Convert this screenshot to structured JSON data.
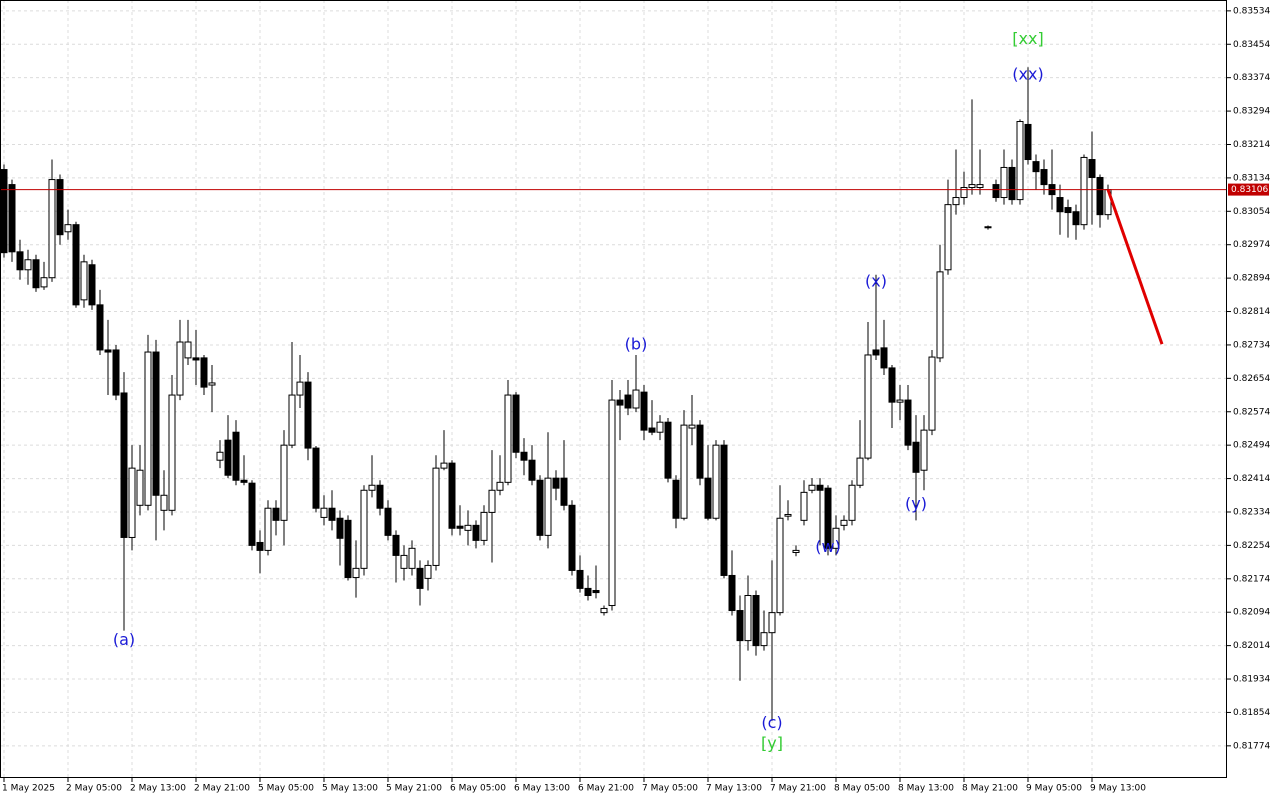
{
  "chart_data": {
    "type": "candlestick",
    "bull_color": "#ffffff",
    "bear_color": "#000000",
    "edge_color": "#000000",
    "grid": true,
    "categories": [
      "1 May 2025",
      null,
      null,
      null,
      null,
      null,
      null,
      null,
      "2 May 05:00",
      null,
      null,
      null,
      null,
      null,
      null,
      null,
      "2 May 13:00",
      null,
      null,
      null,
      null,
      null,
      null,
      null,
      "2 May 21:00",
      null,
      null,
      null,
      null,
      null,
      null,
      null,
      "5 May 05:00",
      null,
      null,
      null,
      null,
      null,
      null,
      null,
      "5 May 13:00",
      null,
      null,
      null,
      null,
      null,
      null,
      null,
      "5 May 21:00",
      null,
      null,
      null,
      null,
      null,
      null,
      null,
      "6 May 05:00",
      null,
      null,
      null,
      null,
      null,
      null,
      null,
      "6 May 13:00",
      null,
      null,
      null,
      null,
      null,
      null,
      null,
      "6 May 21:00",
      null,
      null,
      null,
      null,
      null,
      null,
      null,
      "7 May 05:00",
      null,
      null,
      null,
      null,
      null,
      null,
      null,
      "7 May 13:00",
      null,
      null,
      null,
      null,
      null,
      null,
      null,
      "7 May 21:00",
      null,
      null,
      null,
      null,
      null,
      null,
      null,
      "8 May 05:00",
      null,
      null,
      null,
      null,
      null,
      null,
      null,
      "8 May 13:00",
      null,
      null,
      null,
      null,
      null,
      null,
      null,
      "8 May 21:00",
      null,
      null,
      null,
      null,
      null,
      null,
      null,
      "9 May 05:00",
      null,
      null,
      null,
      null,
      null,
      null,
      null,
      "9 May 13:00",
      null,
      null
    ],
    "candles": [
      [
        0.83154,
        0.83166,
        0.82943,
        0.82955
      ],
      [
        0.83118,
        0.8313,
        0.82933,
        0.82957
      ],
      [
        0.82957,
        0.82986,
        0.8289,
        0.82914
      ],
      [
        0.82914,
        0.82962,
        0.82878,
        0.82938
      ],
      [
        0.82938,
        0.8295,
        0.82861,
        0.82871
      ],
      [
        0.82873,
        0.82933,
        0.82866,
        0.82895
      ],
      [
        0.82895,
        0.83178,
        0.82885,
        0.8313
      ],
      [
        0.8313,
        0.83142,
        0.82974,
        0.82998
      ],
      [
        0.83005,
        0.83058,
        0.82986,
        0.83022
      ],
      [
        0.83022,
        0.83029,
        0.82823,
        0.8283
      ],
      [
        0.82842,
        0.8295,
        0.82823,
        0.82933
      ],
      [
        0.82926,
        0.82938,
        0.82818,
        0.8283
      ],
      [
        0.8283,
        0.82866,
        0.8271,
        0.82722
      ],
      [
        0.82722,
        0.82794,
        0.82614,
        0.82717
      ],
      [
        0.82722,
        0.82734,
        0.82602,
        0.82614
      ],
      [
        0.82619,
        0.82669,
        0.8205,
        0.82273
      ],
      [
        0.82273,
        0.82494,
        0.82242,
        0.82439
      ],
      [
        0.8235,
        0.82494,
        0.82326,
        0.82434
      ],
      [
        0.8235,
        0.82758,
        0.82338,
        0.82717
      ],
      [
        0.82717,
        0.82746,
        0.82266,
        0.82374
      ],
      [
        0.82338,
        0.82434,
        0.8229,
        0.82374
      ],
      [
        0.82338,
        0.82662,
        0.82326,
        0.82614
      ],
      [
        0.82614,
        0.82794,
        0.82602,
        0.82741
      ],
      [
        0.82703,
        0.82794,
        0.82686,
        0.82741
      ],
      [
        0.82703,
        0.8277,
        0.82638,
        0.82698
      ],
      [
        0.82703,
        0.8271,
        0.82614,
        0.82633
      ],
      [
        0.82638,
        0.82686,
        0.82573,
        0.82643
      ],
      [
        0.82458,
        0.82506,
        0.82439,
        0.82477
      ],
      [
        0.82506,
        0.82566,
        0.82415,
        0.82422
      ],
      [
        0.82525,
        0.82554,
        0.82398,
        0.8241
      ],
      [
        0.8241,
        0.8247,
        0.82398,
        0.82405
      ],
      [
        0.82403,
        0.8241,
        0.82242,
        0.82254
      ],
      [
        0.82261,
        0.8229,
        0.82187,
        0.82242
      ],
      [
        0.82242,
        0.82362,
        0.8223,
        0.82343
      ],
      [
        0.82343,
        0.82362,
        0.82278,
        0.82314
      ],
      [
        0.82314,
        0.8253,
        0.82254,
        0.82494
      ],
      [
        0.82494,
        0.82741,
        0.82487,
        0.82614
      ],
      [
        0.82614,
        0.8271,
        0.82583,
        0.82645
      ],
      [
        0.82645,
        0.82669,
        0.82458,
        0.82487
      ],
      [
        0.82487,
        0.82492,
        0.82333,
        0.82343
      ],
      [
        0.82321,
        0.82374,
        0.82302,
        0.82343
      ],
      [
        0.82343,
        0.82386,
        0.8229,
        0.82314
      ],
      [
        0.82319,
        0.82338,
        0.82206,
        0.82271
      ],
      [
        0.82314,
        0.82326,
        0.8217,
        0.82177
      ],
      [
        0.82177,
        0.82266,
        0.82129,
        0.82199
      ],
      [
        0.82199,
        0.82398,
        0.82182,
        0.82386
      ],
      [
        0.82386,
        0.8247,
        0.82369,
        0.82398
      ],
      [
        0.82398,
        0.8241,
        0.82326,
        0.82343
      ],
      [
        0.82343,
        0.82362,
        0.82266,
        0.82278
      ],
      [
        0.82278,
        0.8229,
        0.82165,
        0.8223
      ],
      [
        0.82199,
        0.82254,
        0.8217,
        0.8223
      ],
      [
        0.82199,
        0.82266,
        0.82182,
        0.82247
      ],
      [
        0.82199,
        0.82218,
        0.8211,
        0.82151
      ],
      [
        0.82175,
        0.82218,
        0.82146,
        0.82206
      ],
      [
        0.82206,
        0.8247,
        0.82194,
        0.82439
      ],
      [
        0.82439,
        0.8253,
        0.82434,
        0.82451
      ],
      [
        0.82451,
        0.82458,
        0.82278,
        0.82295
      ],
      [
        0.823,
        0.8235,
        0.82278,
        0.82295
      ],
      [
        0.8229,
        0.82338,
        0.82254,
        0.82302
      ],
      [
        0.82302,
        0.82314,
        0.82247,
        0.82266
      ],
      [
        0.82266,
        0.8235,
        0.82254,
        0.82333
      ],
      [
        0.82333,
        0.82482,
        0.82213,
        0.82386
      ],
      [
        0.82386,
        0.8247,
        0.82374,
        0.82405
      ],
      [
        0.82405,
        0.8265,
        0.82398,
        0.82614
      ],
      [
        0.82614,
        0.82621,
        0.82463,
        0.82477
      ],
      [
        0.82477,
        0.82511,
        0.82422,
        0.82458
      ],
      [
        0.82458,
        0.82494,
        0.82398,
        0.8241
      ],
      [
        0.8241,
        0.82422,
        0.82266,
        0.82278
      ],
      [
        0.82278,
        0.82525,
        0.82247,
        0.82415
      ],
      [
        0.82415,
        0.82434,
        0.82362,
        0.82391
      ],
      [
        0.82415,
        0.82506,
        0.82338,
        0.8235
      ],
      [
        0.8235,
        0.82362,
        0.82182,
        0.82194
      ],
      [
        0.82194,
        0.8223,
        0.82141,
        0.82151
      ],
      [
        0.82151,
        0.82182,
        0.82122,
        0.82134
      ],
      [
        0.82146,
        0.82206,
        0.82127,
        0.82141
      ],
      [
        0.82093,
        0.8211,
        0.82086,
        0.82103
      ],
      [
        0.8211,
        0.8265,
        0.82098,
        0.82602
      ],
      [
        0.82602,
        0.82626,
        0.82506,
        0.8259
      ],
      [
        0.82614,
        0.8265,
        0.82566,
        0.82583
      ],
      [
        0.82583,
        0.8271,
        0.82573,
        0.82626
      ],
      [
        0.82621,
        0.82638,
        0.82506,
        0.8253
      ],
      [
        0.82535,
        0.82602,
        0.82518,
        0.82525
      ],
      [
        0.82525,
        0.82566,
        0.82506,
        0.82549
      ],
      [
        0.82549,
        0.82559,
        0.82405,
        0.82415
      ],
      [
        0.8241,
        0.82422,
        0.82295,
        0.82319
      ],
      [
        0.82319,
        0.82578,
        0.82314,
        0.82542
      ],
      [
        0.82535,
        0.82614,
        0.82494,
        0.82542
      ],
      [
        0.82542,
        0.82554,
        0.82398,
        0.82415
      ],
      [
        0.82415,
        0.82494,
        0.82314,
        0.82319
      ],
      [
        0.82319,
        0.82506,
        0.82314,
        0.82494
      ],
      [
        0.82494,
        0.82506,
        0.82175,
        0.82182
      ],
      [
        0.82182,
        0.82242,
        0.82086,
        0.82098
      ],
      [
        0.82098,
        0.82134,
        0.8193,
        0.82026
      ],
      [
        0.82026,
        0.82182,
        0.82002,
        0.82134
      ],
      [
        0.82134,
        0.82146,
        0.8199,
        0.82014
      ],
      [
        0.82014,
        0.82098,
        0.82002,
        0.82045
      ],
      [
        0.82045,
        0.82218,
        0.81834,
        0.82093
      ],
      [
        0.82093,
        0.82398,
        0.82086,
        0.82319
      ],
      [
        0.82324,
        0.82362,
        0.82314,
        0.82328
      ],
      [
        0.82237,
        0.82254,
        0.82228,
        0.82242
      ],
      [
        0.82314,
        0.8241,
        0.82302,
        0.82381
      ],
      [
        0.82386,
        0.82415,
        0.82379,
        0.82398
      ],
      [
        0.82398,
        0.82415,
        0.82254,
        0.82386
      ],
      [
        0.82391,
        0.82398,
        0.8223,
        0.82247
      ],
      [
        0.82247,
        0.82326,
        0.8223,
        0.82295
      ],
      [
        0.82302,
        0.82326,
        0.8229,
        0.82314
      ],
      [
        0.82314,
        0.8241,
        0.82302,
        0.82398
      ],
      [
        0.82398,
        0.82554,
        0.82391,
        0.82463
      ],
      [
        0.82463,
        0.82789,
        0.82458,
        0.8271
      ],
      [
        0.82722,
        0.82902,
        0.82698,
        0.8271
      ],
      [
        0.82727,
        0.82794,
        0.82662,
        0.82679
      ],
      [
        0.82679,
        0.82686,
        0.82535,
        0.82597
      ],
      [
        0.82597,
        0.82638,
        0.82554,
        0.82602
      ],
      [
        0.82602,
        0.82638,
        0.82482,
        0.82494
      ],
      [
        0.82501,
        0.82566,
        0.82314,
        0.82429
      ],
      [
        0.82434,
        0.82566,
        0.82386,
        0.8253
      ],
      [
        0.8253,
        0.82722,
        0.82518,
        0.82705
      ],
      [
        0.82703,
        0.82974,
        0.82693,
        0.82909
      ],
      [
        0.82914,
        0.8313,
        0.82902,
        0.8307
      ],
      [
        0.8307,
        0.83202,
        0.83046,
        0.83087
      ],
      [
        0.83087,
        0.83149,
        0.8307,
        0.83111
      ],
      [
        0.83111,
        0.83322,
        0.83094,
        0.83118
      ],
      [
        0.83111,
        0.83202,
        0.83094,
        0.83118
      ],
      [
        0.83015,
        0.8302,
        0.8301,
        0.83017
      ],
      [
        0.83118,
        0.8313,
        0.83077,
        0.83087
      ],
      [
        0.83087,
        0.83202,
        0.8307,
        0.83159
      ],
      [
        0.83159,
        0.83178,
        0.8307,
        0.83082
      ],
      [
        0.83082,
        0.83274,
        0.8307,
        0.83269
      ],
      [
        0.83262,
        0.83399,
        0.83166,
        0.83178
      ],
      [
        0.83173,
        0.8319,
        0.83106,
        0.83149
      ],
      [
        0.83154,
        0.83178,
        0.83094,
        0.83118
      ],
      [
        0.83118,
        0.83202,
        0.83058,
        0.83094
      ],
      [
        0.83087,
        0.83118,
        0.82998,
        0.83053
      ],
      [
        0.83063,
        0.83082,
        0.82991,
        0.83051
      ],
      [
        0.83053,
        0.8307,
        0.82986,
        0.83022
      ],
      [
        0.83022,
        0.8319,
        0.8301,
        0.83183
      ],
      [
        0.83178,
        0.83245,
        0.83022,
        0.83135
      ],
      [
        0.83135,
        0.83142,
        0.83015,
        0.83046
      ],
      [
        0.83046,
        0.83118,
        0.83034,
        0.83106
      ]
    ],
    "ylim": [
      0.81697,
      0.8356
    ],
    "yticks": [
      0.81774,
      0.81854,
      0.81934,
      0.82014,
      0.82094,
      0.82174,
      0.82254,
      0.82334,
      0.82414,
      0.82494,
      0.82574,
      0.82654,
      0.82734,
      0.82814,
      0.82894,
      0.82974,
      0.83054,
      0.83134,
      0.83214,
      0.83294,
      0.83374,
      0.83454,
      0.83534
    ],
    "current_price": 0.83106,
    "current_price_color": "#c00000",
    "forecast": {
      "color": "#e00000",
      "x": [
        138,
        144.75
      ],
      "values": [
        0.83106,
        0.82736
      ]
    },
    "annotations": [
      {
        "text": "(a)",
        "x": 15,
        "y": 0.82026,
        "color": "#1a1ad6"
      },
      {
        "text": "(b)",
        "x": 79,
        "y": 0.82734,
        "color": "#1a1ad6"
      },
      {
        "text": "(c)",
        "x": 96,
        "y": 0.81827,
        "color": "#1a1ad6"
      },
      {
        "text": "[y]",
        "x": 96,
        "y": 0.81779,
        "color": "#33cc33"
      },
      {
        "text": "(w)",
        "x": 103,
        "y": 0.82249,
        "color": "#1a1ad6"
      },
      {
        "text": "(x)",
        "x": 109,
        "y": 0.82885,
        "color": "#1a1ad6"
      },
      {
        "text": "(y)",
        "x": 114,
        "y": 0.82352,
        "color": "#1a1ad6"
      },
      {
        "text": "(xx)",
        "x": 128,
        "y": 0.8338,
        "color": "#1a1ad6"
      },
      {
        "text": "[xx]",
        "x": 128,
        "y": 0.83466,
        "color": "#33cc33"
      }
    ]
  }
}
